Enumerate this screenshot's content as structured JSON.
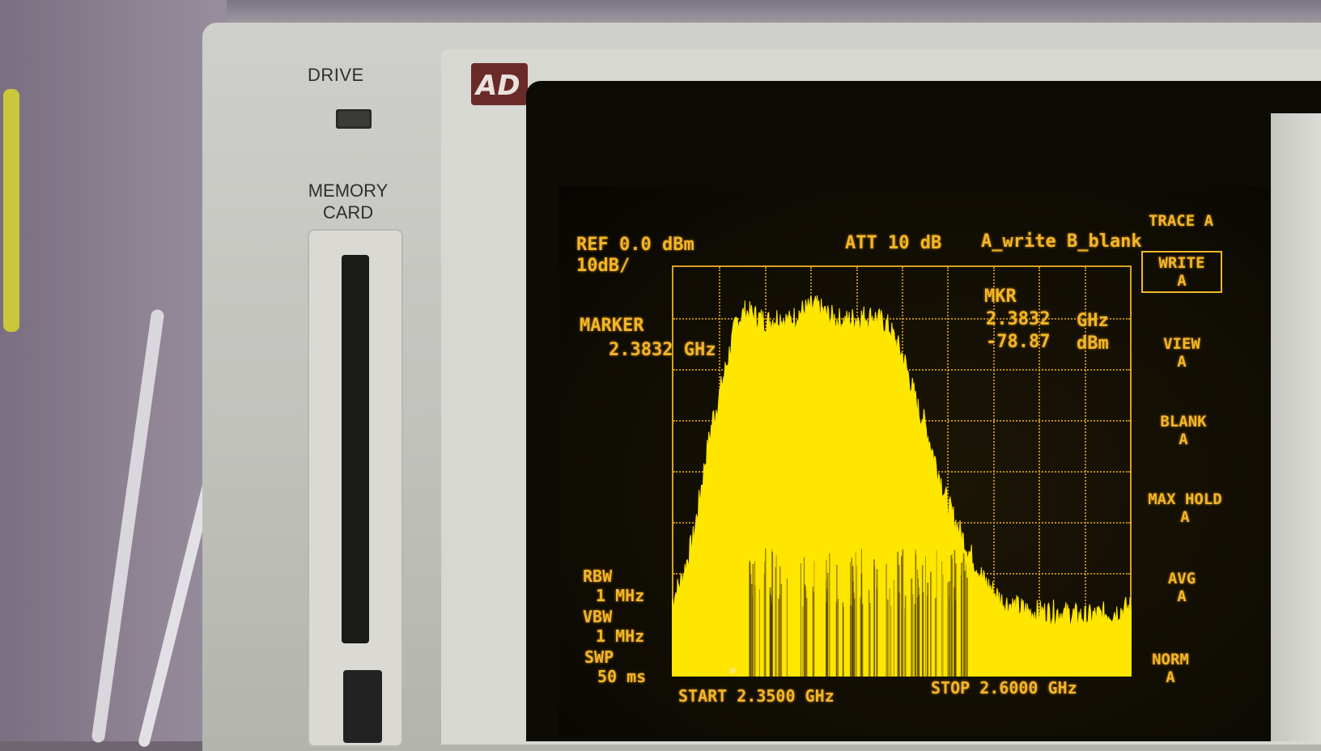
{
  "instrument": {
    "drive_label": "DRIVE",
    "memory_card_label_line1": "MEMORY",
    "memory_card_label_line2": "CARD",
    "logo_text": "AD"
  },
  "screen": {
    "ref": "REF 0.0 dBm",
    "scale": "10dB/",
    "att": "ATT 10 dB",
    "trace_mode": "A_write B_blank",
    "marker_label": "MARKER",
    "marker_freq": "2.3832 GHz",
    "mkr_label": "MKR",
    "mkr_freq_value": "2.3832",
    "mkr_freq_unit": "GHz",
    "mkr_level_value": "-78.87",
    "mkr_level_unit": "dBm",
    "rbw_label": "RBW",
    "rbw_value": "1 MHz",
    "vbw_label": "VBW",
    "vbw_value": "1 MHz",
    "swp_label": "SWP",
    "swp_value": "50 ms",
    "start": "START 2.3500 GHz",
    "stop": "STOP 2.6000 GHz"
  },
  "softkeys": {
    "title": "TRACE A",
    "items": [
      {
        "line1": "WRITE",
        "line2": "A",
        "selected": true
      },
      {
        "line1": "VIEW",
        "line2": "A",
        "selected": false
      },
      {
        "line1": "BLANK",
        "line2": "A",
        "selected": false
      },
      {
        "line1": "MAX HOLD",
        "line2": "A",
        "selected": false
      },
      {
        "line1": "AVG",
        "line2": "A",
        "selected": false
      },
      {
        "line1": "NORM",
        "line2": "A",
        "selected": false
      }
    ]
  },
  "colors": {
    "trace": "#ffe600",
    "trace_floor": "#f2a100",
    "text": "#f2b62a",
    "grid": "#d9a11f"
  },
  "spectrum": {
    "freq_start_ghz": 2.35,
    "freq_stop_ghz": 2.6,
    "ref_dbm": 0,
    "db_per_div": 10,
    "divisions_vertical": 8,
    "marker_freq_ghz": 2.3832,
    "marker_level_dbm": -78.87,
    "envelope_ghz": [
      2.35,
      2.356,
      2.362,
      2.368,
      2.374,
      2.38,
      2.385,
      2.39,
      2.396,
      2.402,
      2.408,
      2.414,
      2.42,
      2.428,
      2.436,
      2.444,
      2.452,
      2.46,
      2.468,
      2.476,
      2.484,
      2.492,
      2.5,
      2.51,
      2.52,
      2.53,
      2.545,
      2.56,
      2.575,
      2.59,
      2.6
    ],
    "envelope_dbm": [
      -67,
      -62,
      -54,
      -40,
      -28,
      -19,
      -11,
      -9,
      -10,
      -11,
      -10,
      -11,
      -9,
      -8,
      -10,
      -11,
      -10,
      -10,
      -12,
      -18,
      -28,
      -38,
      -48,
      -56,
      -63,
      -67,
      -69,
      -69,
      -70,
      -69,
      -68
    ],
    "floor_dbm": -72
  }
}
